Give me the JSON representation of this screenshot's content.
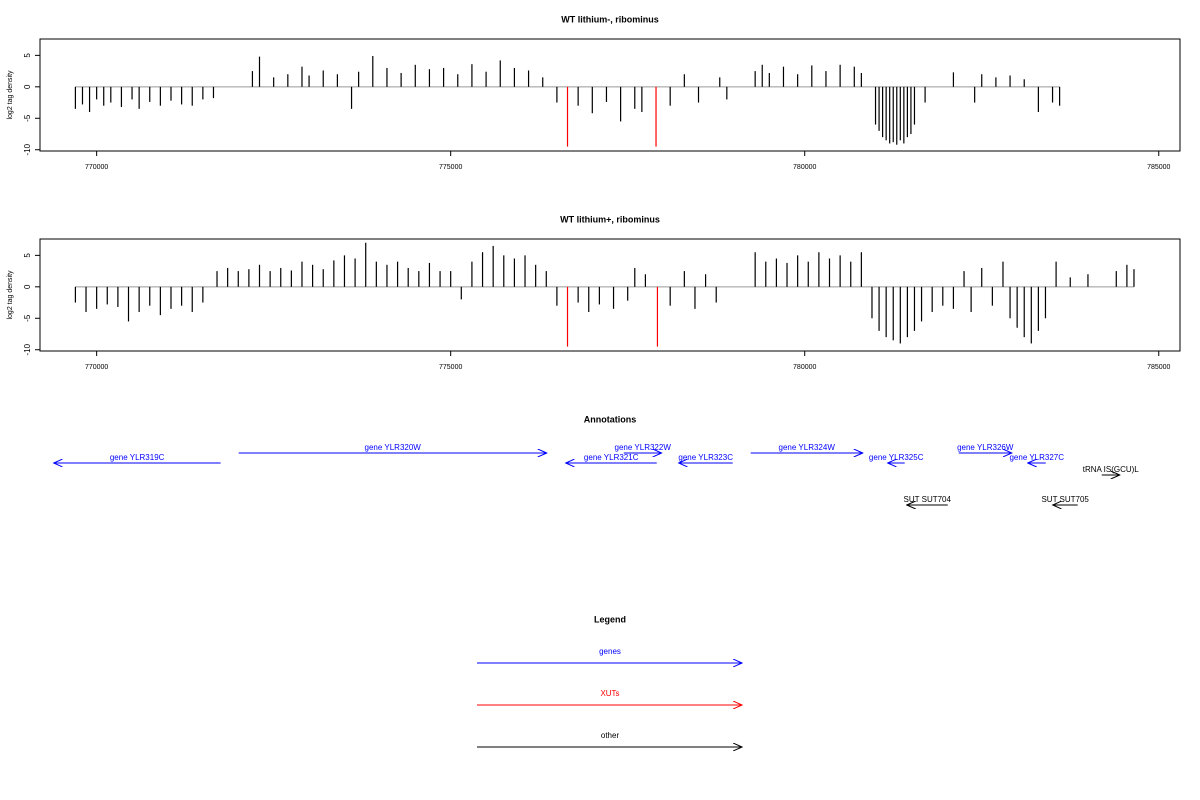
{
  "chart_data": [
    {
      "type": "spike",
      "title": "WT lithium-, ribominus",
      "y_label": "log2 tag density",
      "xlim": [
        769200,
        785300
      ],
      "ylim": [
        -10.2,
        7.6
      ],
      "xticks": [
        770000,
        775000,
        780000,
        785000
      ],
      "yticks": [
        -10,
        -5,
        0,
        5
      ],
      "series": [
        {
          "color": "#000000",
          "x": [
            769700,
            769800,
            769900,
            770000,
            770100,
            770200,
            770350,
            770500,
            770600,
            770750,
            770900,
            771050,
            771200,
            771350,
            771500,
            771650,
            772200,
            772300,
            772500,
            772700,
            772900,
            773000,
            773200,
            773400,
            773600,
            773700,
            773900,
            774100,
            774300,
            774500,
            774700,
            774900,
            775100,
            775300,
            775500,
            775700,
            775900,
            776100,
            776300,
            776500,
            776800,
            777000,
            777200,
            777400,
            777600,
            777700,
            778100,
            778300,
            778500,
            778800,
            778900,
            779300,
            779400,
            779500,
            779700,
            779900,
            780100,
            780300,
            780500,
            780700,
            780800,
            781000,
            781050,
            781100,
            781150,
            781200,
            781250,
            781300,
            781350,
            781400,
            781450,
            781500,
            781550,
            781700,
            782100,
            782400,
            782500,
            782700,
            782900,
            783100,
            783300,
            783500,
            783600
          ],
          "values": [
            -3.5,
            -2.8,
            -4,
            -2,
            -3,
            -2.5,
            -3.2,
            -2,
            -3.5,
            -2.4,
            -3,
            -2.2,
            -2.8,
            -3,
            -2,
            -1.8,
            2.5,
            4.8,
            1.5,
            2,
            3.2,
            1.8,
            2.6,
            2,
            -3.5,
            2.4,
            4.9,
            3,
            2.2,
            3.5,
            2.8,
            3,
            2,
            3.6,
            2.4,
            4.2,
            3,
            2.6,
            1.5,
            -2.5,
            -3,
            -4.2,
            -2.4,
            -5.5,
            -3.5,
            -4,
            -3,
            2,
            -2.5,
            1.5,
            -2,
            2.5,
            3.5,
            2.2,
            3.2,
            2,
            3.4,
            2.5,
            3.5,
            3.2,
            2.2,
            -6,
            -7,
            -8,
            -8.5,
            -9,
            -8.8,
            -9.2,
            -8.5,
            -9,
            -8,
            -7.5,
            -6,
            -2.5,
            2.3,
            -2.5,
            2,
            1.5,
            1.8,
            1.2,
            -4,
            -2.5,
            -3
          ]
        },
        {
          "color": "#ff0000",
          "x": [
            776650,
            777900
          ],
          "values": [
            -9.5,
            -9.5
          ]
        }
      ]
    },
    {
      "type": "spike",
      "title": "WT lithium+, ribominus",
      "y_label": "log2 tag density",
      "xlim": [
        769200,
        785300
      ],
      "ylim": [
        -10.2,
        7.6
      ],
      "xticks": [
        770000,
        775000,
        780000,
        785000
      ],
      "yticks": [
        -10,
        -5,
        0,
        5
      ],
      "series": [
        {
          "color": "#000000",
          "x": [
            769700,
            769850,
            770000,
            770150,
            770300,
            770450,
            770600,
            770750,
            770900,
            771050,
            771200,
            771350,
            771500,
            771700,
            771850,
            772000,
            772150,
            772300,
            772450,
            772600,
            772750,
            772900,
            773050,
            773200,
            773350,
            773500,
            773650,
            773800,
            773950,
            774100,
            774250,
            774400,
            774550,
            774700,
            774850,
            775000,
            775150,
            775300,
            775450,
            775600,
            775750,
            775900,
            776050,
            776200,
            776350,
            776500,
            776800,
            776950,
            777100,
            777300,
            777500,
            777600,
            777750,
            778100,
            778300,
            778450,
            778600,
            778750,
            779300,
            779450,
            779600,
            779750,
            779900,
            780050,
            780200,
            780350,
            780500,
            780650,
            780800,
            780950,
            781050,
            781150,
            781250,
            781350,
            781450,
            781550,
            781650,
            781800,
            781950,
            782100,
            782250,
            782350,
            782500,
            782650,
            782800,
            782900,
            783000,
            783100,
            783200,
            783300,
            783400,
            783550,
            783750,
            784000,
            784400,
            784550,
            784650
          ],
          "values": [
            -2.5,
            -4,
            -3.5,
            -2.8,
            -3.2,
            -5.5,
            -4,
            -3,
            -4.5,
            -3.5,
            -3,
            -4,
            -2.5,
            2.5,
            3,
            2.5,
            2.8,
            3.5,
            2.5,
            3,
            2.6,
            4,
            3.5,
            2.8,
            4.2,
            5,
            4.5,
            7,
            4,
            3.5,
            4,
            3,
            2.5,
            3.8,
            2.5,
            2.5,
            -2,
            4,
            5.5,
            6.5,
            5,
            4.5,
            5,
            3.5,
            2.5,
            -3,
            -2.5,
            -4,
            -2.8,
            -3.5,
            -2.2,
            3,
            2,
            -3,
            2.5,
            -3.5,
            2,
            -2.5,
            5.5,
            4,
            4.5,
            3.8,
            5,
            4,
            5.5,
            4.5,
            5,
            4,
            5.5,
            -5,
            -7,
            -8,
            -8.5,
            -9,
            -8,
            -7,
            -5.5,
            -4,
            -3,
            -3.5,
            2.5,
            -4,
            3,
            -3,
            4,
            -5,
            -6.5,
            -8,
            -9,
            -7,
            -5,
            4,
            1.5,
            2,
            2.5,
            3.5,
            2.8
          ]
        },
        {
          "color": "#ff0000",
          "x": [
            776650,
            777920
          ],
          "values": [
            -9.5,
            -9.5
          ]
        }
      ]
    }
  ],
  "annotations": {
    "title": "Annotations",
    "features": [
      {
        "label": "gene YLR319C",
        "start": 769393,
        "end": 771751,
        "strand": "-",
        "color": "#0000ff"
      },
      {
        "label": "gene YLR320W",
        "start": 772006,
        "end": 776356,
        "strand": "+",
        "color": "#0000ff"
      },
      {
        "label": "gene YLR321C",
        "start": 776624,
        "end": 777910,
        "strand": "-",
        "color": "#0000ff"
      },
      {
        "label": "gene YLR322W",
        "start": 777444,
        "end": 777980,
        "strand": "+",
        "color": "#0000ff"
      },
      {
        "label": "gene YLR323C",
        "start": 778220,
        "end": 778983,
        "strand": "-",
        "color": "#0000ff"
      },
      {
        "label": "gene YLR324W",
        "start": 779237,
        "end": 780819,
        "strand": "+",
        "color": "#0000ff"
      },
      {
        "label": "gene YLR325C",
        "start": 781172,
        "end": 781412,
        "strand": "-",
        "color": "#0000ff"
      },
      {
        "label": "gene YLR326W",
        "start": 782175,
        "end": 782924,
        "strand": "+",
        "color": "#0000ff"
      },
      {
        "label": "gene YLR327C",
        "start": 783150,
        "end": 783404,
        "strand": "-",
        "color": "#0000ff"
      },
      {
        "label": "tRNA IS(GCU)L",
        "start": 784195,
        "end": 784449,
        "strand": "+",
        "color": "#000000"
      },
      {
        "label": "SUT SUT704",
        "start": 781441,
        "end": 782020,
        "strand": "-",
        "color": "#000000"
      },
      {
        "label": "SUT SUT705",
        "start": 783502,
        "end": 783855,
        "strand": "-",
        "color": "#000000"
      }
    ]
  },
  "legend": {
    "title": "Legend",
    "items": [
      {
        "label": "genes",
        "color": "#0000ff"
      },
      {
        "label": "XUTs",
        "color": "#ff0000"
      },
      {
        "label": "other",
        "color": "#000000"
      }
    ]
  }
}
